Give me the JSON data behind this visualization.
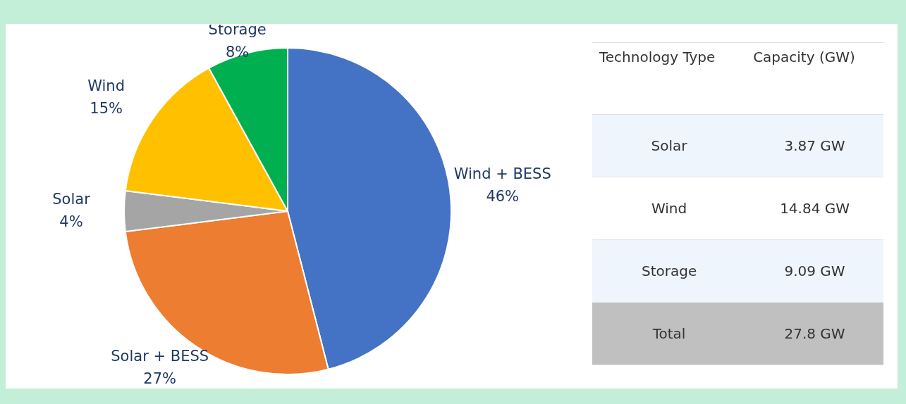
{
  "chart_data": [
    {
      "type": "pie",
      "categories": [
        "Wind + BESS",
        "Solar + BESS",
        "Solar",
        "Wind",
        "Storage"
      ],
      "values": [
        46,
        27,
        4,
        15,
        8
      ],
      "value_labels": [
        "46%",
        "27%",
        "4%",
        "15%",
        "8%"
      ],
      "colors": [
        "#4472c4",
        "#ed7d31",
        "#a5a5a5",
        "#ffc000",
        "#00b050"
      ],
      "legend": false
    },
    {
      "type": "other",
      "xlabel": "Technology Type",
      "ylabel": "Capacity (GW)",
      "categories": [
        "Solar",
        "Wind",
        "Storage",
        "Total"
      ],
      "values": [
        3.87,
        14.84,
        9.09,
        27.8
      ],
      "value_labels": [
        "3.87 GW",
        "14.84 GW",
        "9.09 GW",
        "27.8 GW"
      ],
      "colors": [
        "#eef5fc",
        "#ffffff",
        "#eef5fc",
        "#c0c0c0"
      ]
    }
  ]
}
